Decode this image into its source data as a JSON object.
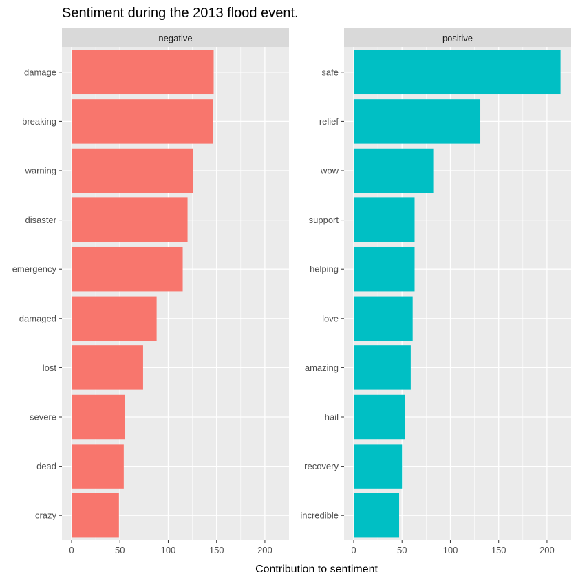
{
  "chart_data": {
    "type": "bar",
    "orientation": "horizontal",
    "title": "Sentiment during the 2013 flood event.",
    "xlabel": "Contribution to sentiment",
    "ylabel": "",
    "xlim": [
      0,
      215
    ],
    "x_ticks": [
      0,
      50,
      100,
      150,
      200
    ],
    "grid": true,
    "legend": "none",
    "colors": {
      "negative": "#F8766D",
      "positive": "#00BFC4",
      "panel_bg": "#EBEBEB",
      "strip_bg": "#D9D9D9",
      "grid": "#FFFFFF"
    },
    "panels": [
      {
        "name": "negative",
        "categories": [
          "damage",
          "breaking",
          "warning",
          "disaster",
          "emergency",
          "damaged",
          "lost",
          "severe",
          "dead",
          "crazy"
        ],
        "values": [
          147,
          146,
          126,
          120,
          115,
          88,
          74,
          55,
          54,
          49
        ]
      },
      {
        "name": "positive",
        "categories": [
          "safe",
          "relief",
          "wow",
          "support",
          "helping",
          "love",
          "amazing",
          "hail",
          "recovery",
          "incredible"
        ],
        "values": [
          214,
          131,
          83,
          63,
          63,
          61,
          59,
          53,
          50,
          47
        ]
      }
    ]
  }
}
